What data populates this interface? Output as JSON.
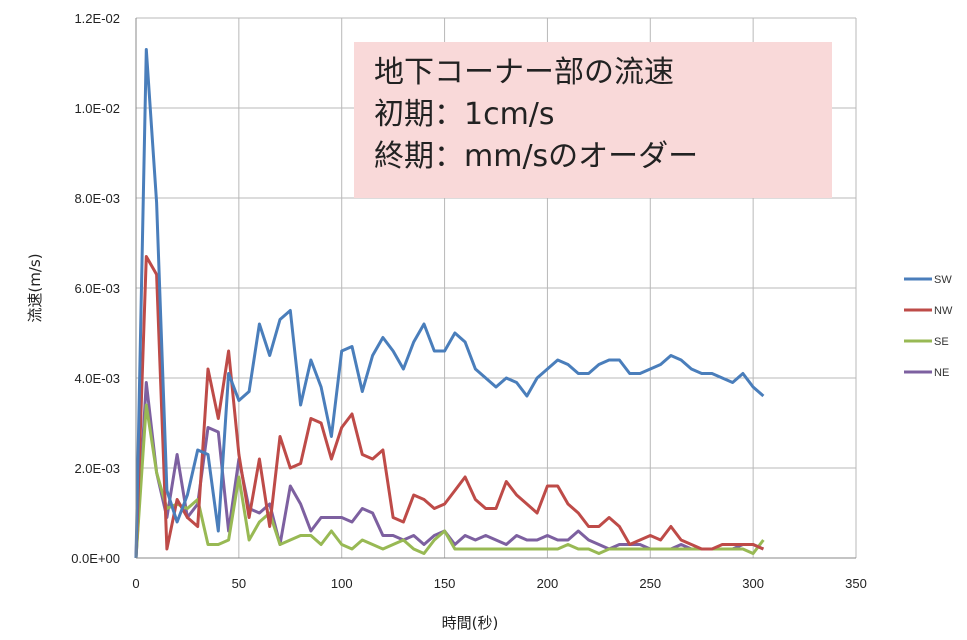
{
  "note": {
    "lines": [
      "地下コーナー部の流速",
      "初期：1cm/s",
      "終期：mm/sのオーダー"
    ]
  },
  "chart_data": {
    "type": "line",
    "xlabel": "時間(秒)",
    "ylabel": "流速(m/s)",
    "xlim": [
      0,
      350
    ],
    "ylim": [
      0,
      0.012
    ],
    "x_ticks": [
      0,
      50,
      100,
      150,
      200,
      250,
      300,
      350
    ],
    "y_ticks": [
      0,
      0.002,
      0.004,
      0.006,
      0.008,
      0.01,
      0.012
    ],
    "x_tick_labels": [
      "0",
      "50",
      "100",
      "150",
      "200",
      "250",
      "300",
      "350"
    ],
    "y_tick_labels": [
      "0.0E+00",
      "2.0E-03",
      "4.0E-03",
      "6.0E-03",
      "8.0E-03",
      "1.0E-02",
      "1.2E-02"
    ],
    "grid": true,
    "legend_position": "right",
    "x": [
      0,
      5,
      10,
      15,
      20,
      25,
      30,
      35,
      40,
      45,
      50,
      55,
      60,
      65,
      70,
      75,
      80,
      85,
      90,
      95,
      100,
      105,
      110,
      115,
      120,
      125,
      130,
      135,
      140,
      145,
      150,
      155,
      160,
      165,
      170,
      175,
      180,
      185,
      190,
      195,
      200,
      205,
      210,
      215,
      220,
      225,
      230,
      235,
      240,
      245,
      250,
      255,
      260,
      265,
      270,
      275,
      280,
      285,
      290,
      295,
      300,
      305
    ],
    "series": [
      {
        "name": "SW",
        "color": "#4a7ebb",
        "values": [
          0,
          0.0113,
          0.0079,
          0.0015,
          0.0008,
          0.0014,
          0.0024,
          0.0023,
          0.0006,
          0.0041,
          0.0035,
          0.0037,
          0.0052,
          0.0045,
          0.0053,
          0.0055,
          0.0034,
          0.0044,
          0.0038,
          0.0027,
          0.0046,
          0.0047,
          0.0037,
          0.0045,
          0.0049,
          0.0046,
          0.0042,
          0.0048,
          0.0052,
          0.0046,
          0.0046,
          0.005,
          0.0048,
          0.0042,
          0.004,
          0.0038,
          0.004,
          0.0039,
          0.0036,
          0.004,
          0.0042,
          0.0044,
          0.0043,
          0.0041,
          0.0041,
          0.0043,
          0.0044,
          0.0044,
          0.0041,
          0.0041,
          0.0042,
          0.0043,
          0.0045,
          0.0044,
          0.0042,
          0.0041,
          0.0041,
          0.004,
          0.0039,
          0.0041,
          0.0038,
          0.0036
        ]
      },
      {
        "name": "NW",
        "color": "#be4b48",
        "values": [
          0,
          0.0067,
          0.0063,
          0.0002,
          0.0013,
          0.0009,
          0.0007,
          0.0042,
          0.0031,
          0.0046,
          0.0023,
          0.0009,
          0.0022,
          0.0007,
          0.0027,
          0.002,
          0.0021,
          0.0031,
          0.003,
          0.0022,
          0.0029,
          0.0032,
          0.0023,
          0.0022,
          0.0024,
          0.0009,
          0.0008,
          0.0014,
          0.0013,
          0.0011,
          0.0012,
          0.0015,
          0.0018,
          0.0013,
          0.0011,
          0.0011,
          0.0017,
          0.0014,
          0.0012,
          0.001,
          0.0016,
          0.0016,
          0.0012,
          0.001,
          0.0007,
          0.0007,
          0.0009,
          0.0007,
          0.0003,
          0.0004,
          0.0005,
          0.0004,
          0.0007,
          0.0004,
          0.0003,
          0.0002,
          0.0002,
          0.0003,
          0.0003,
          0.0003,
          0.0003,
          0.0002
        ]
      },
      {
        "name": "SE",
        "color": "#98b954",
        "values": [
          0,
          0.0034,
          0.0019,
          0.0011,
          0.0012,
          0.0011,
          0.0013,
          0.0003,
          0.0003,
          0.0004,
          0.0018,
          0.0004,
          0.0008,
          0.001,
          0.0003,
          0.0004,
          0.0005,
          0.0005,
          0.0003,
          0.0006,
          0.0003,
          0.0002,
          0.0004,
          0.0003,
          0.0002,
          0.0003,
          0.0004,
          0.0002,
          0.0001,
          0.0004,
          0.0006,
          0.0002,
          0.0002,
          0.0002,
          0.0002,
          0.0002,
          0.0002,
          0.0002,
          0.0002,
          0.0002,
          0.0002,
          0.0002,
          0.0003,
          0.0002,
          0.0002,
          0.0001,
          0.0002,
          0.0002,
          0.0002,
          0.0002,
          0.0002,
          0.0002,
          0.0002,
          0.0002,
          0.0002,
          0.0002,
          0.0002,
          0.0002,
          0.0002,
          0.0002,
          0.0001,
          0.0004
        ]
      },
      {
        "name": "NE",
        "color": "#7d60a0",
        "values": [
          0,
          0.0039,
          0.0019,
          0.0009,
          0.0023,
          0.0009,
          0.0012,
          0.0029,
          0.0028,
          0.0006,
          0.0022,
          0.0011,
          0.001,
          0.0012,
          0.0003,
          0.0016,
          0.0012,
          0.0006,
          0.0009,
          0.0009,
          0.0009,
          0.0008,
          0.0011,
          0.001,
          0.0005,
          0.0005,
          0.0004,
          0.0005,
          0.0003,
          0.0005,
          0.0006,
          0.0003,
          0.0005,
          0.0004,
          0.0005,
          0.0004,
          0.0003,
          0.0005,
          0.0004,
          0.0004,
          0.0005,
          0.0004,
          0.0004,
          0.0006,
          0.0004,
          0.0003,
          0.0002,
          0.0003,
          0.0003,
          0.0003,
          0.0002,
          0.0002,
          0.0002,
          0.0003,
          0.0002,
          0.0002,
          0.0002,
          0.0002,
          0.0002,
          0.0003,
          0.0003,
          0.0002
        ]
      }
    ]
  }
}
